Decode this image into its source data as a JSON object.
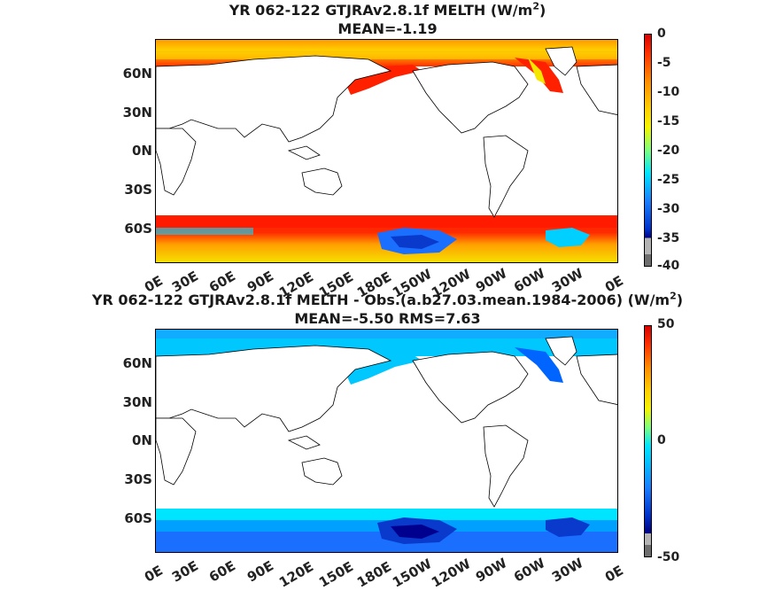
{
  "panels": [
    {
      "title_line1": "YR 062-122 GTJRAv2.8.1f  MELTH (W/m",
      "title_sup": "2",
      "title_close": ")",
      "title_line2": "MEAN=-1.19",
      "colorbar_ticks": [
        "0",
        "-5",
        "-10",
        "-15",
        "-20",
        "-25",
        "-30",
        "-35",
        "-40"
      ],
      "colorbar_range": [
        -40,
        0
      ]
    },
    {
      "title_line1": "YR 062-122 GTJRAv2.8.1f MELTH - Obs.(a.b27.03.mean.1984-2006) (W/m",
      "title_sup": "2",
      "title_close": ")",
      "title_line2": "MEAN=-5.50 RMS=7.63",
      "colorbar_ticks": [
        "50",
        "0",
        "-50"
      ],
      "colorbar_range": [
        -50,
        50
      ]
    }
  ],
  "lat_labels": [
    "60N",
    "30N",
    "0N",
    "30S",
    "60S"
  ],
  "lon_labels": [
    "0E",
    "30E",
    "60E",
    "90E",
    "120E",
    "150E",
    "180E",
    "150W",
    "120W",
    "90W",
    "60W",
    "30W",
    "0E"
  ],
  "colors": {
    "land": "#ffffff",
    "coast": "#000000",
    "jet_red": "#ff1a00",
    "jet_orange": "#ff9900",
    "jet_yellow": "#f2f200",
    "jet_cyan": "#00e5ff",
    "jet_blue": "#0050ff",
    "jet_navy": "#00008f"
  }
}
